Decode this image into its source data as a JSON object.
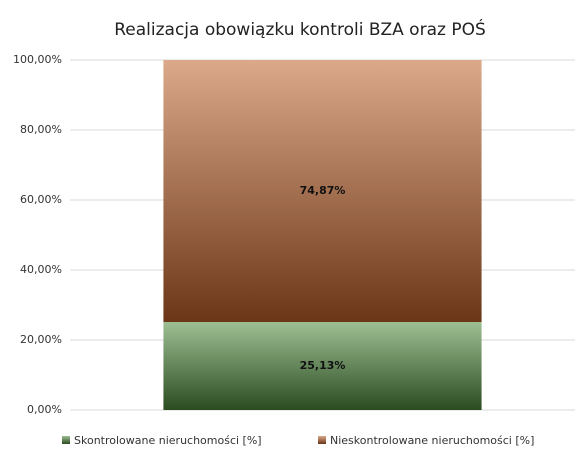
{
  "chart_data": {
    "type": "stacked_bar",
    "title": "Realizacja obowiązku kontroli BZA oraz POŚ",
    "categories": [
      null
    ],
    "series": [
      {
        "name": "Skontrolowane nieruchomości [%]",
        "color": "#4e8a3a",
        "values": [
          25.13
        ],
        "value_labels": [
          "25,13%"
        ]
      },
      {
        "name": "Nieskontrolowane nieruchomości [%]",
        "color": "#c0622a",
        "values": [
          74.87
        ],
        "value_labels": [
          "74,87%"
        ]
      }
    ],
    "ylim": [
      0,
      100
    ],
    "yticks": [
      {
        "value": 0,
        "label": "0,00%"
      },
      {
        "value": 20,
        "label": "20,00%"
      },
      {
        "value": 40,
        "label": "40,00%"
      },
      {
        "value": 60,
        "label": "60,00%"
      },
      {
        "value": 80,
        "label": "80,00%"
      },
      {
        "value": 100,
        "label": "100,00%"
      }
    ],
    "grid": true,
    "legend": "bottom"
  }
}
